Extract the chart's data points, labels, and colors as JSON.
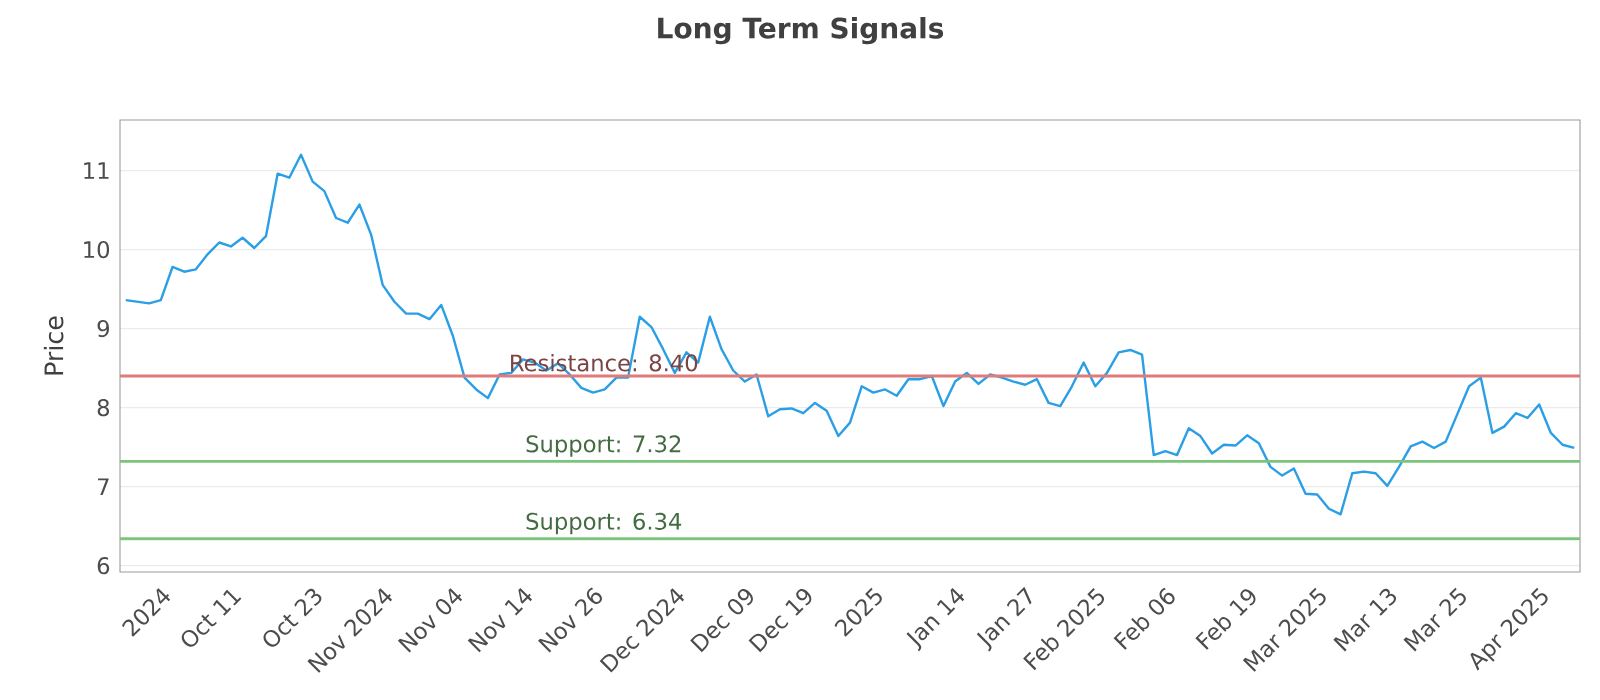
{
  "chart_data": {
    "type": "line",
    "title": "Long Term Signals",
    "ylabel": "Price",
    "categories": [
      null,
      null,
      null,
      "2024",
      null,
      null,
      null,
      null,
      null,
      "Oct 11",
      null,
      null,
      null,
      null,
      null,
      null,
      "Oct 23",
      null,
      null,
      null,
      null,
      null,
      "Nov 2024",
      null,
      null,
      null,
      null,
      null,
      "Nov 04",
      null,
      null,
      null,
      null,
      null,
      "Nov 14",
      null,
      null,
      null,
      null,
      null,
      "Nov 26",
      null,
      null,
      null,
      null,
      null,
      null,
      "Dec 2024",
      null,
      null,
      null,
      null,
      null,
      "Dec 09",
      null,
      null,
      null,
      null,
      "Dec 19",
      null,
      null,
      null,
      null,
      null,
      "2025",
      null,
      null,
      null,
      null,
      null,
      null,
      "Jan 14",
      null,
      null,
      null,
      null,
      null,
      "Jan 27",
      null,
      null,
      null,
      null,
      null,
      "Feb 2025",
      null,
      null,
      null,
      null,
      null,
      "Feb 06",
      null,
      null,
      null,
      null,
      null,
      null,
      "Feb 19",
      null,
      null,
      null,
      null,
      null,
      "Mar 2025",
      null,
      null,
      null,
      null,
      null,
      "Mar 13",
      null,
      null,
      null,
      null,
      null,
      "Mar 25",
      null,
      null,
      null,
      null,
      null,
      null,
      "Apr 2025",
      null,
      null,
      null
    ],
    "series": [
      {
        "color": "#2b9fe6",
        "values": [
          9.36,
          9.34,
          9.32,
          9.36,
          9.78,
          9.72,
          9.75,
          9.94,
          10.09,
          10.04,
          10.15,
          10.02,
          10.17,
          10.96,
          10.91,
          11.2,
          10.86,
          10.74,
          10.4,
          10.34,
          10.57,
          10.19,
          9.55,
          9.34,
          9.19,
          9.19,
          9.12,
          9.3,
          8.91,
          8.38,
          8.23,
          8.12,
          8.42,
          8.44,
          8.61,
          8.57,
          8.47,
          8.56,
          8.42,
          8.25,
          8.19,
          8.23,
          8.38,
          8.38,
          9.15,
          9.02,
          8.74,
          8.44,
          8.7,
          8.57,
          9.15,
          8.74,
          8.47,
          8.33,
          8.42,
          7.89,
          7.98,
          7.99,
          7.93,
          8.06,
          7.96,
          7.64,
          7.81,
          8.27,
          8.19,
          8.23,
          8.15,
          8.36,
          8.36,
          8.4,
          8.02,
          8.33,
          8.44,
          8.3,
          8.42,
          8.38,
          8.33,
          8.29,
          8.36,
          8.06,
          8.02,
          8.27,
          8.57,
          8.27,
          8.44,
          8.7,
          8.73,
          8.67,
          7.4,
          7.45,
          7.4,
          7.74,
          7.64,
          7.42,
          7.53,
          7.52,
          7.65,
          7.55,
          7.25,
          7.14,
          7.23,
          6.91,
          6.9,
          6.72,
          6.65,
          7.17,
          7.19,
          7.17,
          7.01,
          7.25,
          7.51,
          7.57,
          7.49,
          7.57,
          7.92,
          8.27,
          8.38,
          7.68,
          7.76,
          7.93,
          7.87,
          8.04,
          7.68,
          7.53,
          7.49
        ]
      }
    ],
    "ylim": [
      5.92,
      11.64
    ],
    "yticks": [
      6,
      7,
      8,
      9,
      10,
      11
    ],
    "grid": "y",
    "marker": "none",
    "line_style": "solid",
    "ref_lines": [
      {
        "axis": "y",
        "value": 8.4,
        "label": "Resistance: 8.40",
        "color": "#e07b7b"
      },
      {
        "axis": "y",
        "value": 7.32,
        "label": "Support: 7.32",
        "color": "#7cc47c"
      },
      {
        "axis": "y",
        "value": 6.34,
        "label": "Support: 6.34",
        "color": "#7cc47c"
      }
    ]
  }
}
